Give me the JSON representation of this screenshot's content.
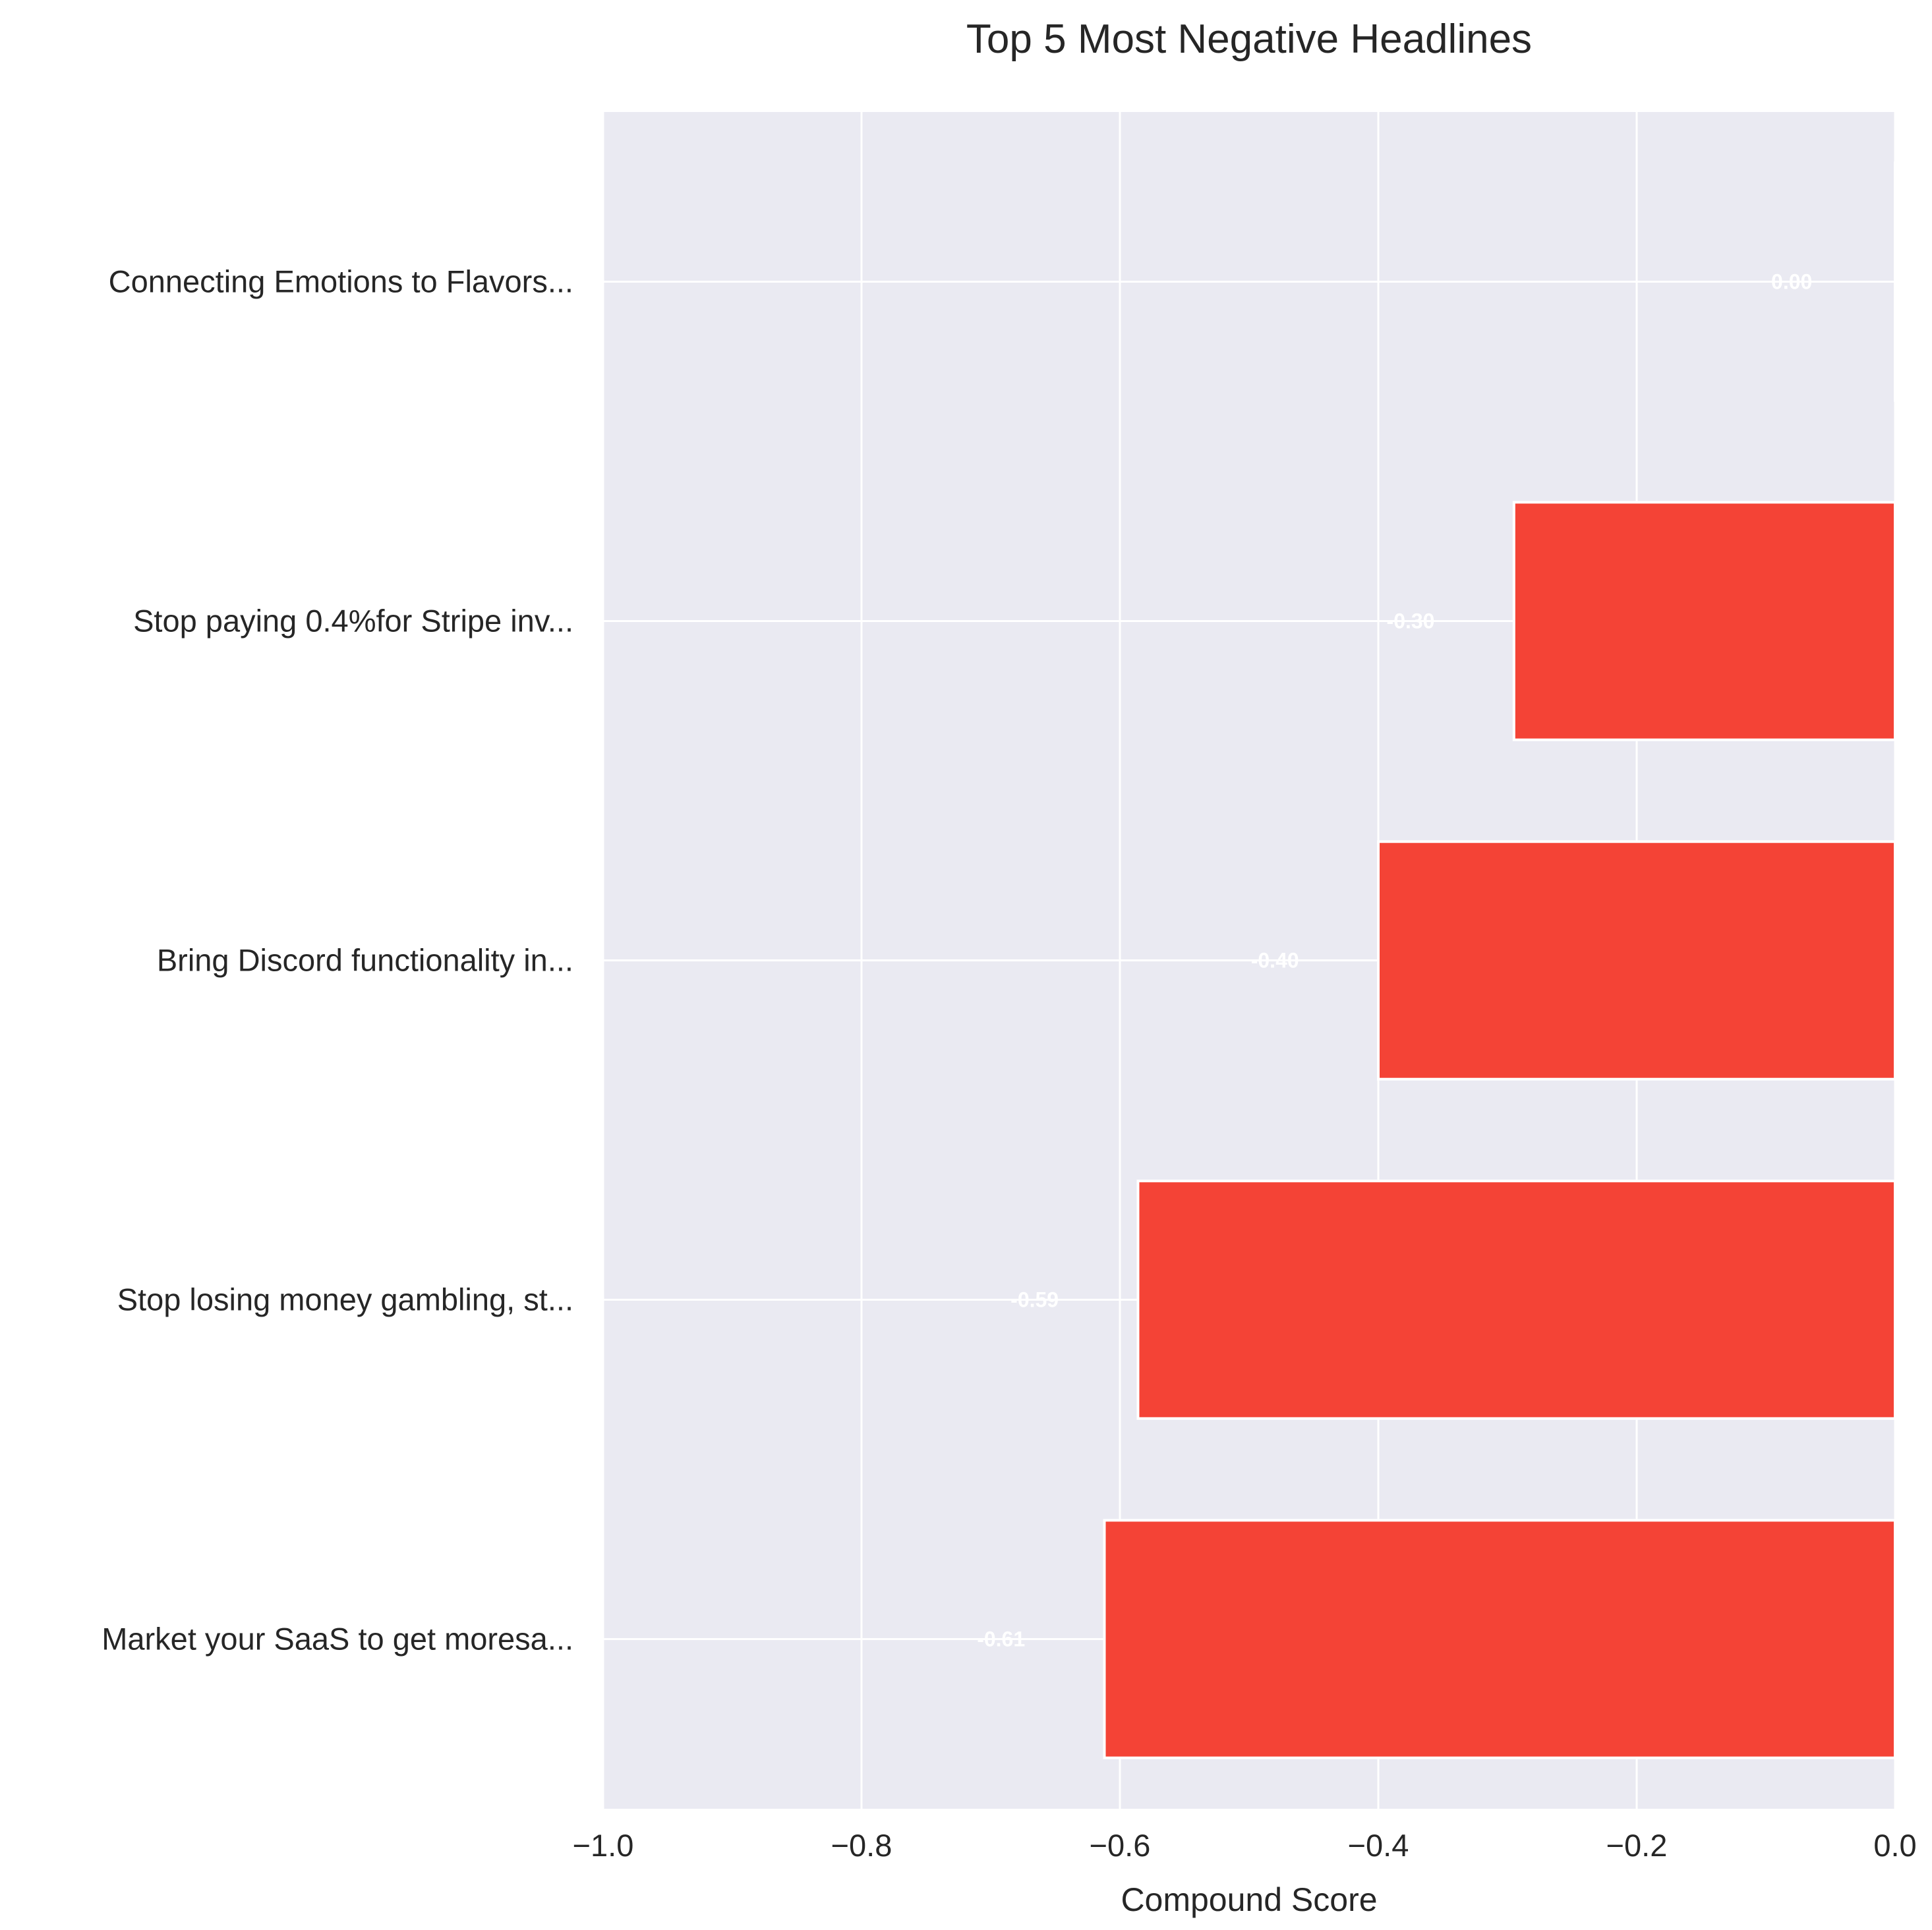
{
  "chart_data": {
    "type": "bar",
    "orientation": "horizontal",
    "title": "Top 5 Most Negative Headlines",
    "xlabel": "Compound Score",
    "ylabel": "",
    "xlim": [
      -1.0,
      0.0
    ],
    "x_ticks": [
      -1.0,
      -0.8,
      -0.6,
      -0.4,
      -0.2,
      0.0
    ],
    "x_tick_labels": [
      "−1.0",
      "−0.8",
      "−0.6",
      "−0.4",
      "−0.2",
      "0.0"
    ],
    "grid": true,
    "categories": [
      "Connecting Emotions to Flavors...",
      "Stop paying 0.4%for Stripe inv...",
      "Bring Discord functionality in...",
      "Stop losing money gambling, st...",
      "Market your SaaS to get moresa..."
    ],
    "values": [
      0.0,
      -0.295,
      -0.4,
      -0.586,
      -0.612
    ],
    "data_labels": [
      "0.00",
      "-0.30",
      "-0.40",
      "-0.59",
      "-0.61"
    ],
    "bar_color": "#f44336",
    "plot_background": "#eaeaf2"
  }
}
